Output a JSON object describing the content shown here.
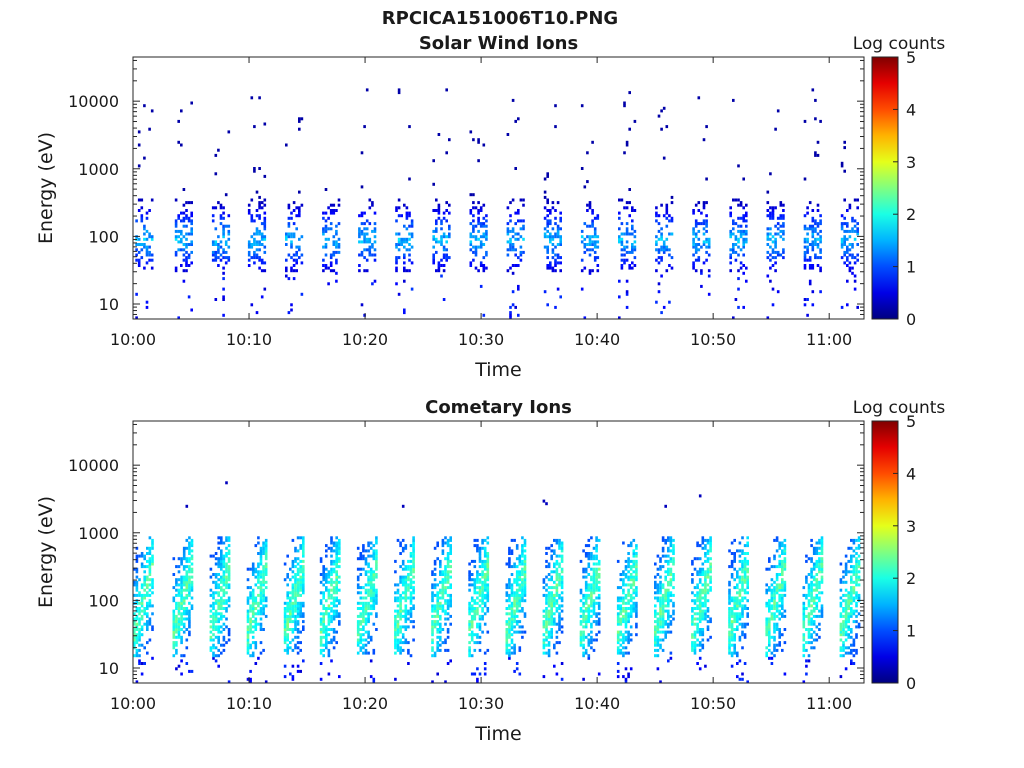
{
  "figure": {
    "filename_title": "RPCICA151006T10.PNG"
  },
  "colormap": "jet",
  "chart_data": [
    {
      "type": "heatmap",
      "title": "Solar Wind Ions",
      "xlabel": "Time",
      "ylabel": "Energy (eV)",
      "x_range": [
        "10:00",
        "11:03"
      ],
      "y_scale": "log",
      "ylim": [
        6,
        45000
      ],
      "x_ticks": [
        "10:00",
        "10:10",
        "10:20",
        "10:30",
        "10:40",
        "10:50",
        "11:00"
      ],
      "y_ticks": [
        "10",
        "100",
        "1000",
        "10000"
      ],
      "colorbar": {
        "label": "Log counts",
        "range": [
          0,
          5
        ],
        "ticks": [
          "0",
          "1",
          "2",
          "3",
          "4",
          "5"
        ]
      },
      "sweep_period_min": 3.2,
      "sweep_starts_min": [
        0.2,
        3.6,
        6.8,
        9.9,
        13.1,
        16.3,
        19.4,
        22.6,
        25.8,
        29.0,
        32.2,
        35.4,
        38.6,
        41.8,
        45.0,
        48.2,
        51.4,
        54.6,
        57.8,
        61.0
      ],
      "core_energy_range_eV": [
        30,
        350
      ],
      "core_log_counts": [
        0.3,
        1.8
      ],
      "sparse_energy_range_eV": [
        300,
        15000
      ],
      "sparse_log_counts": 0.2
    },
    {
      "type": "heatmap",
      "title": "Cometary Ions",
      "xlabel": "Time",
      "ylabel": "Energy (eV)",
      "x_range": [
        "10:00",
        "11:03"
      ],
      "y_scale": "log",
      "ylim": [
        6,
        45000
      ],
      "x_ticks": [
        "10:00",
        "10:10",
        "10:20",
        "10:30",
        "10:40",
        "10:50",
        "11:00"
      ],
      "y_ticks": [
        "10",
        "100",
        "1000",
        "10000"
      ],
      "colorbar": {
        "label": "Log counts",
        "range": [
          0,
          5
        ],
        "ticks": [
          "0",
          "1",
          "2",
          "3",
          "4",
          "5"
        ]
      },
      "sweep_period_min": 3.2,
      "sweep_starts_min": [
        0.0,
        3.4,
        6.6,
        9.8,
        13.0,
        16.1,
        19.3,
        22.5,
        25.7,
        28.9,
        32.1,
        35.3,
        38.5,
        41.7,
        44.9,
        48.1,
        51.3,
        54.5,
        57.7,
        60.9
      ],
      "core_energy_range_eV": [
        15,
        900
      ],
      "core_log_counts": [
        1.0,
        2.6
      ],
      "sparse_energy_range_eV": [
        1200,
        12000
      ],
      "sparse_log_counts": 0.3
    }
  ]
}
